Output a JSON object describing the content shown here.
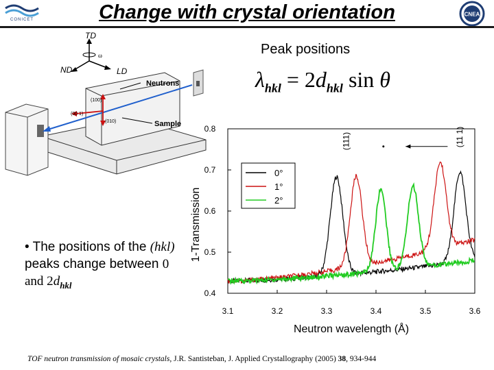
{
  "slide": {
    "title": "Change with crystal orientation",
    "logo_left_text": "CONICET",
    "logo_right_text": "CNEA",
    "peak_label": "Peak positions",
    "formula": {
      "lambda": "λ",
      "lambda_sub": "hkl",
      "equals": " = 2",
      "d": "d",
      "d_sub": "hkl",
      "sin": " sin ",
      "theta": "θ"
    },
    "bullet": {
      "marker": "•",
      "text_a": " The positions of the ",
      "hkl": "(hkl)",
      "text_b": " peaks change between ",
      "text_c": "0 and 2",
      "d": "d",
      "d_sub": "hkl"
    },
    "citation": {
      "italic_part": "TOF neutron transmission of mosaic crystals,",
      "authors": " J.R. Santisteban, J. Applied Crystallography (2005) ",
      "volume": "38",
      "pages": ", 934-944"
    },
    "diagram": {
      "td": "TD",
      "nd": "ND",
      "ld": "LD",
      "omega": "ω",
      "neutrons": "Neutrons",
      "sample": "Sample",
      "l100": "(100)",
      "l001": "(00 1)",
      "l010": "(010)"
    }
  },
  "colors": {
    "series_0": "#000000",
    "series_1": "#cc1111",
    "series_2": "#22cc22",
    "arrow_blue": "#1f5fcc",
    "arrow_red": "#cc1111"
  },
  "chart_data": {
    "type": "line",
    "xlabel": "Neutron wavelength (Å)",
    "ylabel": "1-Transmission",
    "xlim": [
      3.1,
      3.6
    ],
    "ylim": [
      0.4,
      0.8
    ],
    "xticks": [
      "3.1",
      "3.2",
      "3.3",
      "3.4",
      "3.5",
      "3.6"
    ],
    "yticks": [
      "0.4",
      "0.5",
      "0.6",
      "0.7",
      "0.8"
    ],
    "legend": {
      "placement": "top-left",
      "entries": [
        "0°",
        "1°",
        "2°"
      ]
    },
    "annotations": [
      {
        "text": "(111)",
        "x": 3.345,
        "y": 0.77
      },
      {
        "text": "(11 1)",
        "x": 3.575,
        "y": 0.78
      }
    ],
    "grid": false,
    "series": [
      {
        "name": "0°",
        "peaks": [
          {
            "x": 3.32,
            "h": 0.24,
            "w": 0.018
          },
          {
            "x": 3.57,
            "h": 0.22,
            "w": 0.017
          }
        ],
        "base_start": 0.43,
        "base_end": 0.48
      },
      {
        "name": "1°",
        "peaks": [
          {
            "x": 3.36,
            "h": 0.22,
            "w": 0.017
          },
          {
            "x": 3.53,
            "h": 0.21,
            "w": 0.017
          }
        ],
        "base_start": 0.43,
        "base_end": 0.53
      },
      {
        "name": "2°",
        "peaks": [
          {
            "x": 3.41,
            "h": 0.2,
            "w": 0.015
          },
          {
            "x": 3.475,
            "h": 0.2,
            "w": 0.016
          }
        ],
        "base_start": 0.43,
        "base_end": 0.48,
        "min_x": 3.43
      }
    ]
  }
}
